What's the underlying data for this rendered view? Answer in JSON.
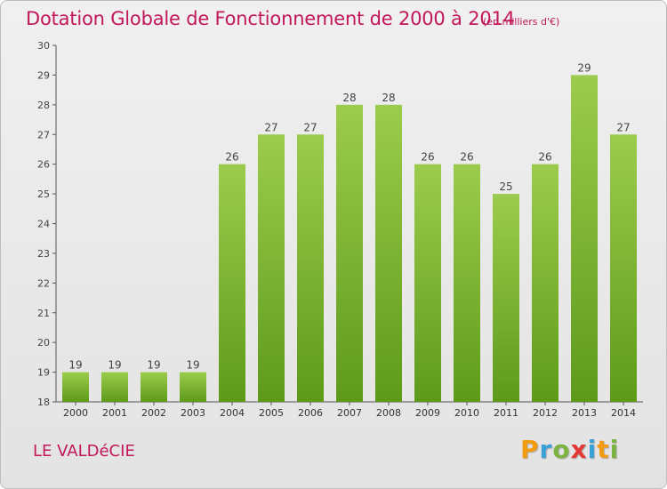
{
  "header": {
    "title": "Dotation Globale de Fonctionnement de 2000 à 2014",
    "unit_note": "(en milliers d'€)"
  },
  "footer": {
    "commune": "LE VALDéCIE",
    "brand": "Proxiti"
  },
  "colors": {
    "title": "#c2185b",
    "bar_light": "#9ccc4d",
    "bar_dark": "#5e9a1a",
    "brand_p": "#f39c12",
    "brand_r": "#3aa0d8",
    "brand_o": "#7cb342",
    "brand_x": "#e53935",
    "brand_i": "#3aa0d8",
    "brand_t": "#f39c12",
    "brand_i2": "#7cb342"
  },
  "chart_data": {
    "type": "bar",
    "title": "Dotation Globale de Fonctionnement de 2000 à 2014",
    "subtitle": "(en milliers d'€)",
    "xlabel": "",
    "ylabel": "",
    "categories": [
      "2000",
      "2001",
      "2002",
      "2003",
      "2004",
      "2005",
      "2006",
      "2007",
      "2008",
      "2009",
      "2010",
      "2011",
      "2012",
      "2013",
      "2014"
    ],
    "values": [
      19,
      19,
      19,
      19,
      26,
      27,
      27,
      28,
      28,
      26,
      26,
      25,
      26,
      29,
      27
    ],
    "ylim": [
      18,
      30
    ],
    "yticks": [
      18,
      19,
      20,
      21,
      22,
      23,
      24,
      25,
      26,
      27,
      28,
      29,
      30
    ],
    "grid": false,
    "data_labels": true
  }
}
